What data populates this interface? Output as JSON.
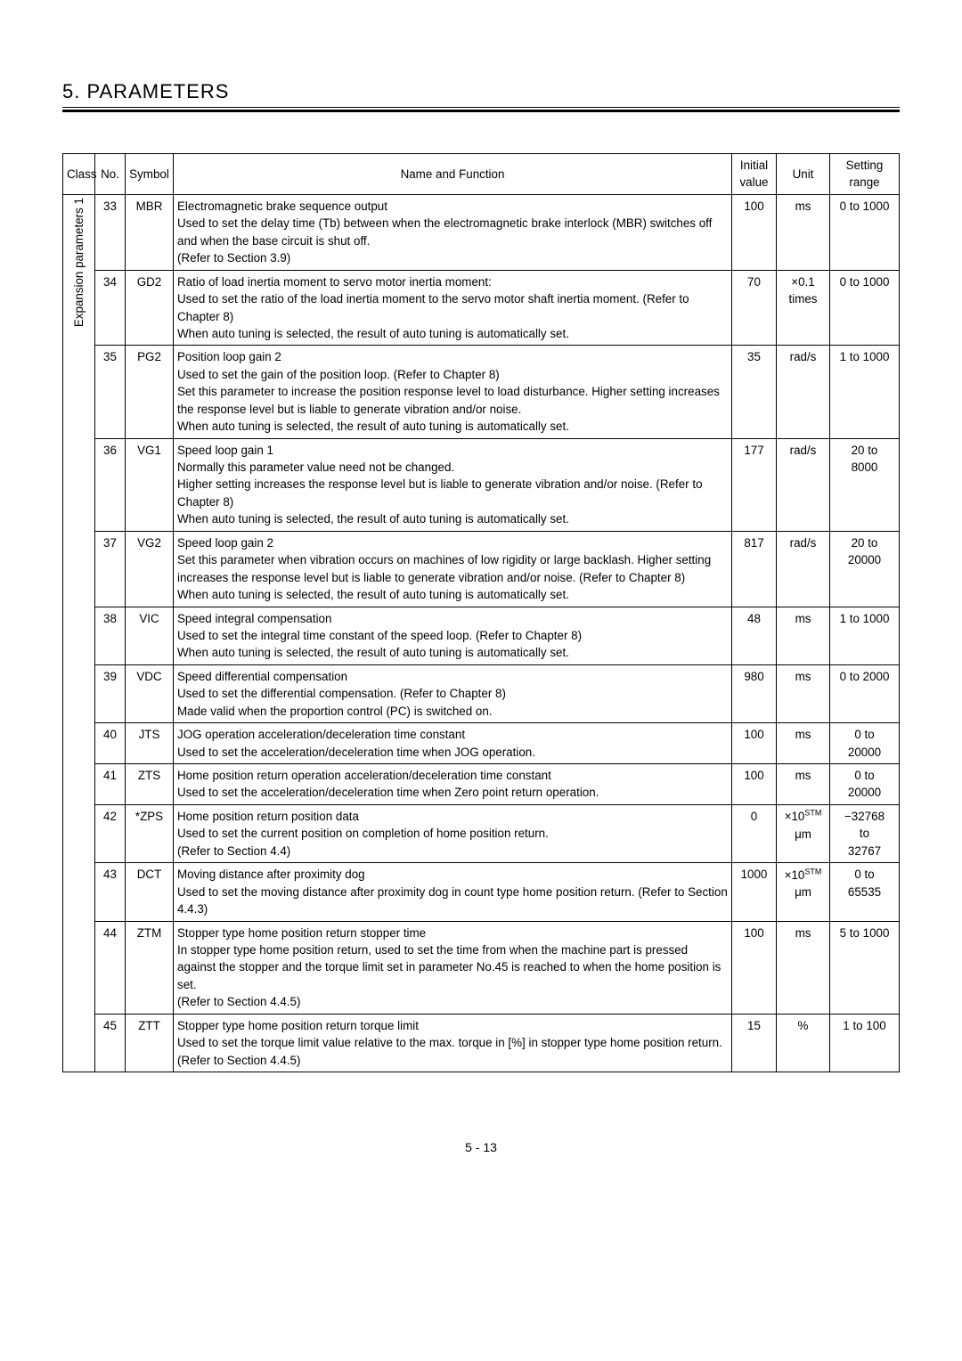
{
  "colors": {
    "text": "#000000",
    "background": "#ffffff",
    "border": "#000000"
  },
  "font": {
    "family": "Arial",
    "size_body": 13.4,
    "size_title": 22
  },
  "chapter_title": "5. PARAMETERS",
  "page_number": "5 -  13",
  "header": {
    "class": "Class",
    "no": "No.",
    "symbol": "Symbol",
    "name": "Name and Function",
    "initial_l1": "Initial",
    "initial_l2": "value",
    "unit": "Unit",
    "setting_l1": "Setting",
    "setting_l2": "range"
  },
  "class_label": "Expansion parameters 1",
  "rows": [
    {
      "no": "33",
      "symbol": "MBR",
      "name": "Electromagnetic brake sequence output\nUsed to set the delay time (Tb) between when the electromagnetic brake interlock (MBR) switches off and when the base circuit is shut off.\n(Refer to Section 3.9)",
      "initial": "100",
      "unit": "ms",
      "range": "0 to 1000"
    },
    {
      "no": "34",
      "symbol": "GD2",
      "name": "Ratio of load inertia moment to servo motor inertia moment:\nUsed to set the ratio of the load inertia moment to the servo motor shaft inertia moment. (Refer to Chapter 8)\nWhen auto tuning is selected, the result of auto tuning is automatically set.",
      "initial": "70",
      "unit": "×0.1\ntimes",
      "range": "0 to 1000"
    },
    {
      "no": "35",
      "symbol": "PG2",
      "name": "Position loop gain 2\nUsed to set the gain of the position loop. (Refer to Chapter 8)\nSet this parameter to increase the position response level to load disturbance. Higher setting increases the response level but is liable to generate vibration and/or noise.\nWhen auto tuning is selected, the result of auto tuning is automatically set.",
      "initial": "35",
      "unit": "rad/s",
      "range": "1 to 1000"
    },
    {
      "no": "36",
      "symbol": "VG1",
      "name": "Speed loop gain 1\nNormally this parameter value need not be changed.\nHigher setting increases the response level but is liable to generate vibration and/or noise. (Refer to Chapter 8)\nWhen auto tuning is selected, the result of auto tuning is automatically set.",
      "initial": "177",
      "unit": "rad/s",
      "range": "20 to\n8000"
    },
    {
      "no": "37",
      "symbol": "VG2",
      "name": "Speed loop gain 2\nSet this parameter when vibration occurs on machines of low rigidity or large backlash. Higher setting increases the response level but is liable to generate vibration and/or noise. (Refer to Chapter 8)\nWhen auto tuning is selected, the result of auto tuning is automatically set.",
      "initial": "817",
      "unit": "rad/s",
      "range": "20 to\n20000"
    },
    {
      "no": "38",
      "symbol": "VIC",
      "name": "Speed integral compensation\nUsed to set the integral time constant of the speed loop. (Refer to Chapter 8)\nWhen auto tuning is selected, the result of auto tuning is automatically set.",
      "initial": "48",
      "unit": "ms",
      "range": "1 to 1000"
    },
    {
      "no": "39",
      "symbol": "VDC",
      "name": "Speed differential compensation\nUsed to set the differential compensation. (Refer to Chapter 8)\nMade valid when the proportion control (PC) is switched on.",
      "initial": "980",
      "unit": "ms",
      "range": "0 to 2000"
    },
    {
      "no": "40",
      "symbol": "JTS",
      "name": "JOG operation acceleration/deceleration time constant\nUsed to set the acceleration/deceleration time when JOG operation.",
      "initial": "100",
      "unit": "ms",
      "range": "0 to\n20000"
    },
    {
      "no": "41",
      "symbol": "ZTS",
      "name": "Home position return operation acceleration/deceleration time constant\nUsed to set the acceleration/deceleration time when Zero point return operation.",
      "initial": "100",
      "unit": "ms",
      "range": "0 to\n20000"
    },
    {
      "no": "42",
      "symbol": "*ZPS",
      "name": "Home position return position data\nUsed to set the current position on completion of home position return.\n(Refer to Section 4.4)",
      "initial": "0",
      "unit_prefix": "×10",
      "unit_sup": "STM",
      "unit_line2": "μm",
      "range": "−32768\nto\n32767"
    },
    {
      "no": "43",
      "symbol": "DCT",
      "name": "Moving distance after proximity dog\nUsed to set the moving distance after proximity dog in count type home position return. (Refer to Section 4.4.3)",
      "initial": "1000",
      "unit_prefix": "×10",
      "unit_sup": "STM",
      "unit_line2": "μm",
      "range": "0 to\n65535"
    },
    {
      "no": "44",
      "symbol": "ZTM",
      "name": "Stopper type home position return stopper time\nIn stopper type home position return, used to set the time from when the machine part is pressed against the stopper and the torque limit set in parameter No.45 is reached to when the home position is set.\n(Refer to Section 4.4.5)",
      "initial": "100",
      "unit": "ms",
      "range": "5 to 1000"
    },
    {
      "no": "45",
      "symbol": "ZTT",
      "name": "Stopper type home position return torque limit\nUsed to set the torque limit value relative to the max. torque in [%] in stopper type home position return. (Refer to Section 4.4.5)",
      "initial": "15",
      "unit": "%",
      "range": "1 to 100"
    }
  ]
}
